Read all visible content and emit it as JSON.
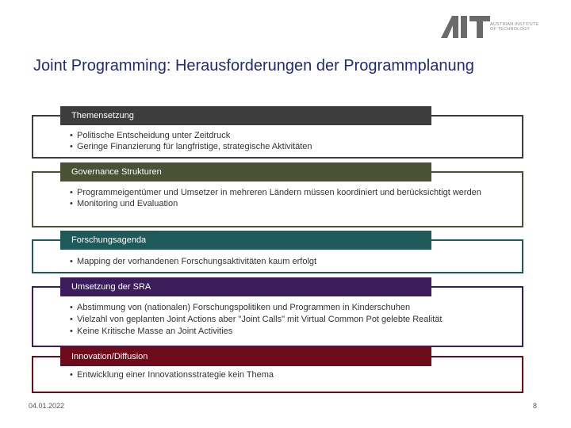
{
  "logo": {
    "mark": "AIT",
    "line1": "AUSTRIAN INSTITUTE",
    "line2": "OF TECHNOLOGY"
  },
  "title": "Joint Programming: Herausforderungen der Programmplanung",
  "sections": [
    {
      "heading": "Themensetzung",
      "color": "#3d3d3d",
      "bullets": [
        "Politische Entscheidung unter Zeitdruck",
        "Geringe Finanzierung für langfristige, strategische Aktivitäten"
      ]
    },
    {
      "heading": "Governance Strukturen",
      "color": "#4a5236",
      "bullets": [
        "Programmeigentümer und Umsetzer in mehreren Ländern müssen koordiniert und berücksichtigt werden",
        "Monitoring und Evaluation"
      ]
    },
    {
      "heading": "Forschungsagenda",
      "color": "#1f5a5a",
      "bullets": [
        "Mapping der vorhandenen Forschungsaktivitäten kaum erfolgt"
      ]
    },
    {
      "heading": "Umsetzung der SRA",
      "color": "#3b1d5c",
      "bullets": [
        "Abstimmung von (nationalen) Forschungspolitiken und Programmen in Kinderschuhen",
        "Vielzahl von geplanten Joint Actions aber \"Joint Calls\" mit Virtual Common Pot gelebte Realität",
        "Keine Kritische Masse an Joint Activities"
      ]
    },
    {
      "heading": "Innovation/Diffusion",
      "color": "#6e0b1a",
      "bullets": [
        "Entwicklung einer Innovationsstrategie kein Thema"
      ]
    }
  ],
  "footer": {
    "date": "04.01.2022",
    "page": "8"
  }
}
